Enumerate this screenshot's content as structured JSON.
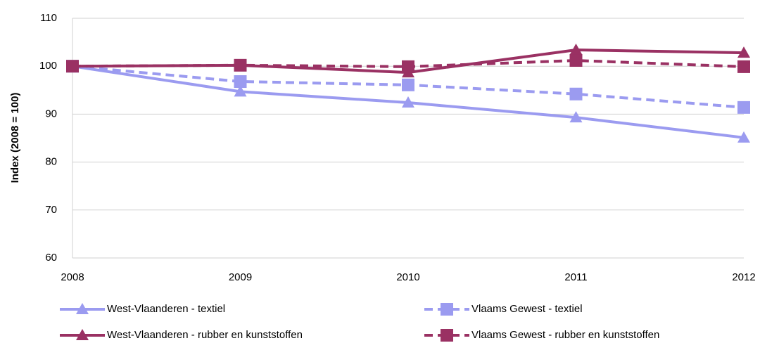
{
  "chart_data": {
    "type": "line",
    "y_label": "Index (2008 = 100)",
    "categories": [
      "2008",
      "2009",
      "2010",
      "2011",
      "2012"
    ],
    "series": [
      {
        "name": "West-Vlaanderen - textiel",
        "color": "#9b9bf0",
        "dash": false,
        "marker": "triangle",
        "values": [
          100,
          94.7,
          92.4,
          89.3,
          85.1
        ]
      },
      {
        "name": "Vlaams Gewest - textiel",
        "color": "#9b9bf0",
        "dash": true,
        "marker": "square",
        "values": [
          100,
          96.8,
          96.1,
          94.2,
          91.4
        ]
      },
      {
        "name": "West-Vlaanderen - rubber en kunststoffen",
        "color": "#9a3163",
        "dash": false,
        "marker": "triangle",
        "values": [
          100,
          100.2,
          98.7,
          103.4,
          102.8
        ]
      },
      {
        "name": "Vlaams Gewest - rubber en kunststoffen",
        "color": "#9a3163",
        "dash": true,
        "marker": "square",
        "values": [
          100,
          100.2,
          99.9,
          101.2,
          99.9
        ]
      }
    ],
    "ylim": [
      60,
      110
    ],
    "yticks": [
      60,
      70,
      80,
      90,
      100,
      110
    ],
    "grid": true
  }
}
